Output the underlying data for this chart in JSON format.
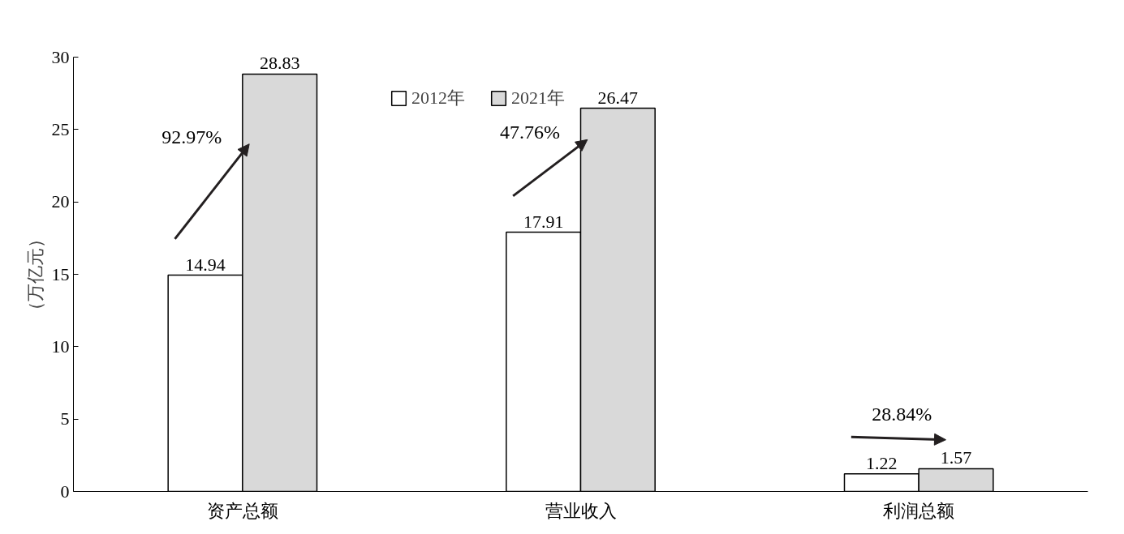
{
  "chart_data": {
    "type": "bar",
    "ylabel": "（万亿元）",
    "categories": [
      "资产总额",
      "营业收入",
      "利润总额"
    ],
    "series": [
      {
        "name": "2012年",
        "color": "#ffffff",
        "values": [
          14.94,
          17.91,
          1.22
        ]
      },
      {
        "name": "2021年",
        "color": "#d9d9d9",
        "values": [
          28.83,
          26.47,
          1.57
        ]
      }
    ],
    "ylim": [
      0,
      30
    ],
    "yticks": [
      0,
      5,
      10,
      15,
      20,
      25,
      30
    ],
    "grid": false,
    "legend": "top left",
    "data_labels": true,
    "annotations": [
      {
        "text": "92.97%",
        "x": "资产总额",
        "y": 24.5
      },
      {
        "text": "47.76%",
        "x": "营业收入",
        "y": 24.8
      },
      "28.84%"
    ]
  }
}
